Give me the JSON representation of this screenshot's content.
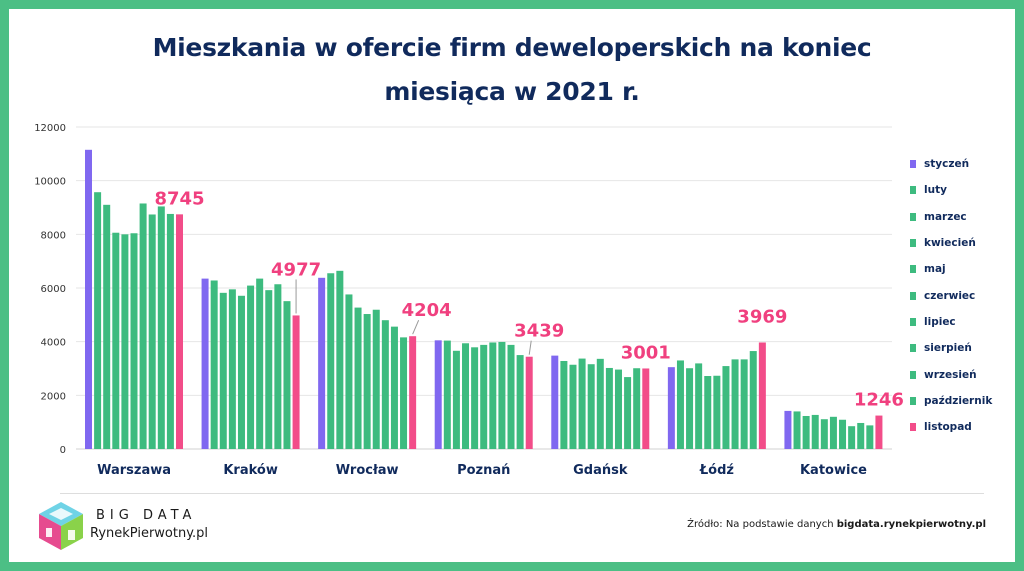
{
  "chart_data": {
    "type": "bar",
    "title_line1": "Mieszkania w ofercie firm deweloperskich na koniec",
    "title_line2": "miesiąca w 2021 r.",
    "categories": [
      "Warszawa",
      "Kraków",
      "Wrocław",
      "Poznań",
      "Gdańsk",
      "Łódź",
      "Katowice"
    ],
    "series": [
      {
        "name": "styczeń",
        "color": "#8068f0",
        "values": [
          11150,
          6350,
          6380,
          4050,
          3480,
          3050,
          1420
        ]
      },
      {
        "name": "luty",
        "color": "#3dbb7f",
        "values": [
          9570,
          6280,
          6550,
          4040,
          3280,
          3300,
          1400
        ]
      },
      {
        "name": "marzec",
        "color": "#3dbb7f",
        "values": [
          9100,
          5820,
          6640,
          3660,
          3140,
          3010,
          1230
        ]
      },
      {
        "name": "kwiecień",
        "color": "#3dbb7f",
        "values": [
          8060,
          5950,
          5760,
          3940,
          3370,
          3190,
          1270
        ]
      },
      {
        "name": "maj",
        "color": "#3dbb7f",
        "values": [
          8000,
          5710,
          5270,
          3790,
          3160,
          2720,
          1110
        ]
      },
      {
        "name": "czerwiec",
        "color": "#3dbb7f",
        "values": [
          8040,
          6090,
          5030,
          3880,
          3360,
          2730,
          1200
        ]
      },
      {
        "name": "lipiec",
        "color": "#3dbb7f",
        "values": [
          9150,
          6350,
          5190,
          3970,
          3020,
          3090,
          1090
        ]
      },
      {
        "name": "sierpień",
        "color": "#3dbb7f",
        "values": [
          8740,
          5920,
          4800,
          3990,
          2960,
          3340,
          850
        ]
      },
      {
        "name": "wrzesień",
        "color": "#3dbb7f",
        "values": [
          9040,
          6140,
          4560,
          3880,
          2680,
          3340,
          970
        ]
      },
      {
        "name": "październik",
        "color": "#3dbb7f",
        "values": [
          8760,
          5510,
          4160,
          3500,
          3010,
          3650,
          880
        ]
      },
      {
        "name": "listopad",
        "color": "#f24d89",
        "values": [
          8745,
          4977,
          4204,
          3439,
          3001,
          3969,
          1246
        ]
      }
    ],
    "data_labels": [
      "8745",
      "4977",
      "4204",
      "3439",
      "3001",
      "3969",
      "1246"
    ],
    "ylim": [
      0,
      12000
    ],
    "yticks": [
      "0",
      "2000",
      "4000",
      "6000",
      "8000",
      "10000",
      "12000"
    ],
    "grid": true,
    "legend_position": "right"
  },
  "logo": {
    "line1": "BIG DATA",
    "line2": "RynekPierwotny.pl"
  },
  "source": {
    "prefix": "Źródło: Na podstawie danych ",
    "bold": "bigdata.rynekpierwotny.pl"
  }
}
